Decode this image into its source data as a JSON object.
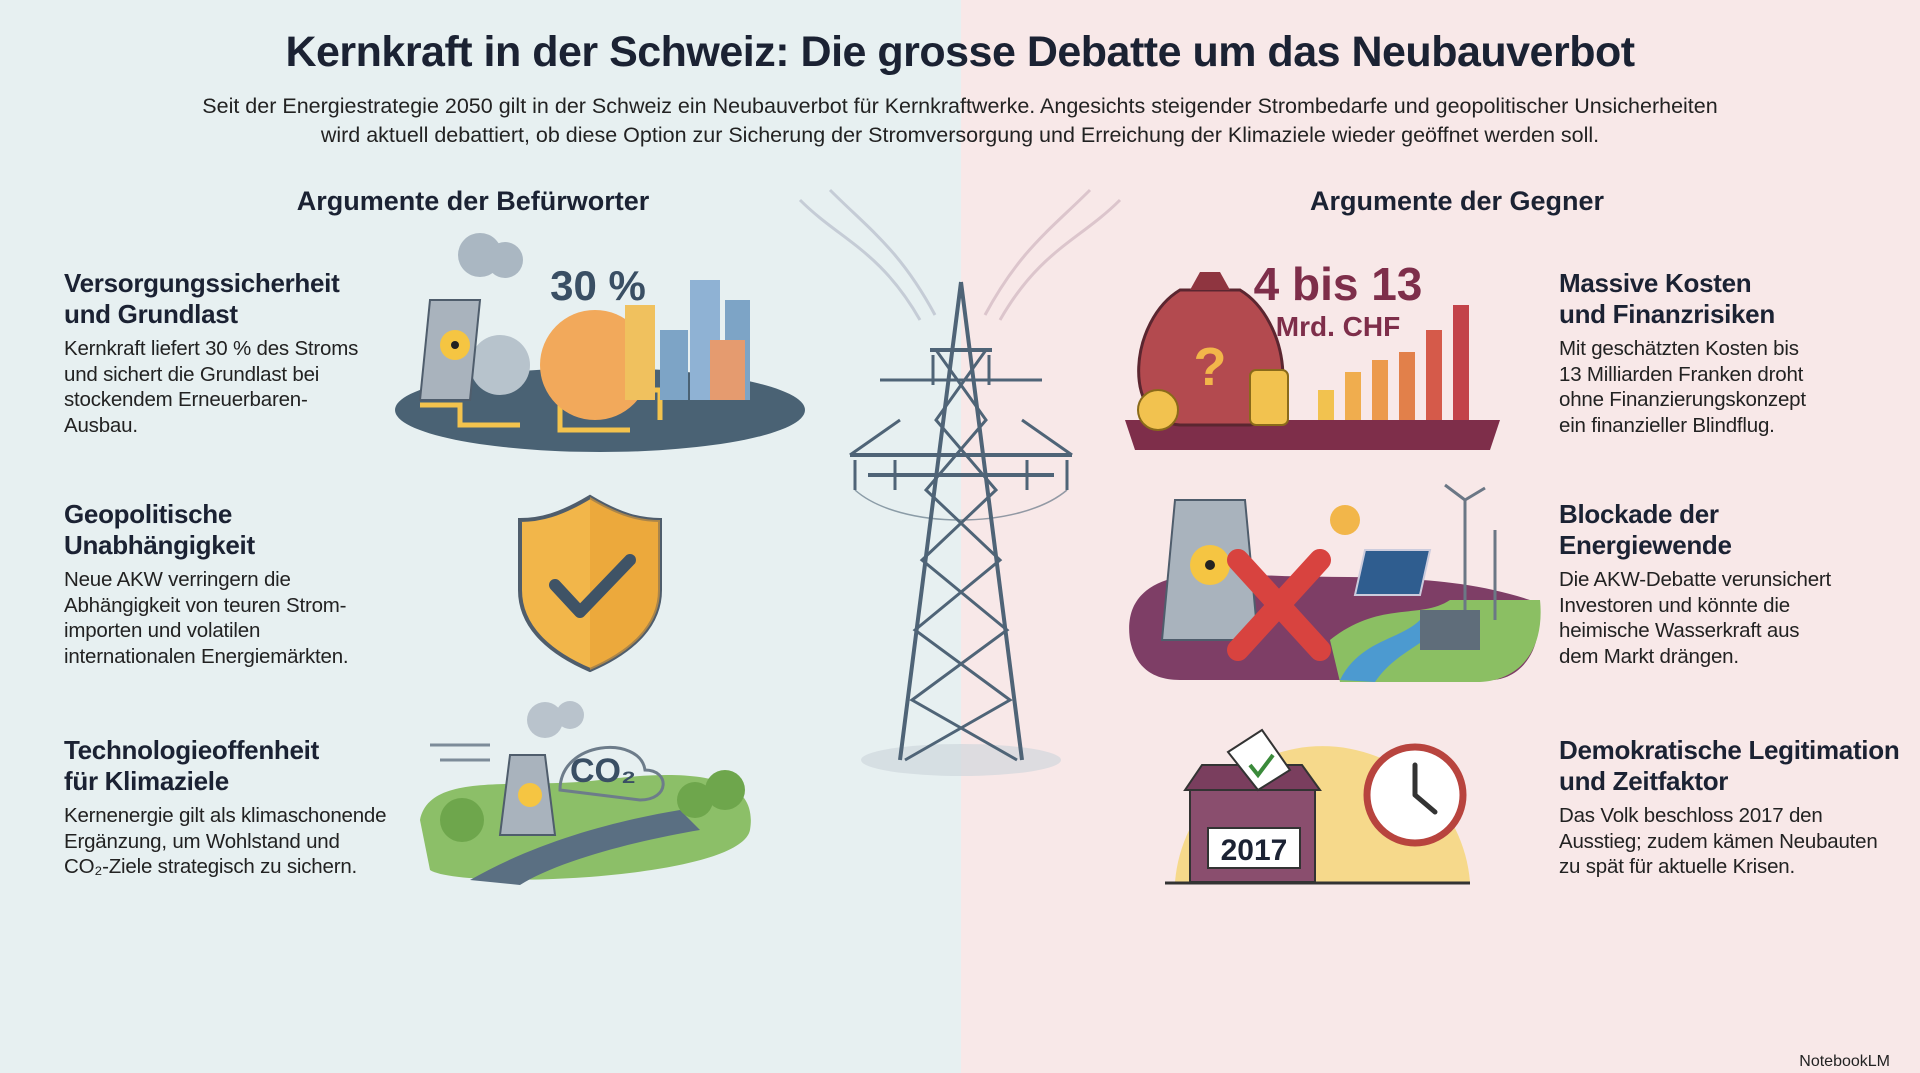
{
  "header": {
    "title": "Kernkraft in der Schweiz: Die grosse Debatte um das Neubauverbot",
    "subtitle": [
      "Seit der Energiestrategie 2050 gilt in der Schweiz ein Neubauverbot für Kernkraftwerke. Angesichts steigender Strombedarfe und geopolitischer Unsicherheiten",
      "wird aktuell debattiert, ob diese Option zur Sicherung der Stromversorgung und Erreichung der Klimaziele wieder geöffnet werden soll."
    ]
  },
  "columns": [
    {
      "heading": "Argumente der Befürworter",
      "items": [
        {
          "title": [
            "Versorgungssicherheit",
            "und Grundlast"
          ],
          "text": [
            "Kernkraft liefert 30 % des Stroms",
            "und sichert die Grundlast bei",
            "stockendem Erneuerbaren-",
            "Ausbau."
          ]
        },
        {
          "title": [
            "Geopolitische",
            "Unabhängigkeit"
          ],
          "text": [
            "Neue AKW verringern die",
            "Abhängigkeit von teuren Strom-",
            "importen und volatilen",
            "internationalen Energiemärkten."
          ]
        },
        {
          "title": [
            "Technologieoffenheit",
            "für Klimaziele"
          ],
          "text": [
            "Kernenergie gilt als klimaschonende",
            "Ergänzung, um Wohlstand und",
            "CO₂-Ziele strategisch zu sichern."
          ]
        }
      ]
    },
    {
      "heading": "Argumente der Gegner",
      "items": [
        {
          "title": [
            "Massive Kosten",
            "und Finanzrisiken"
          ],
          "text": [
            "Mit geschätzten Kosten bis",
            "13 Milliarden Franken droht",
            "ohne Finanzierungskonzept",
            "ein finanzieller Blindflug."
          ]
        },
        {
          "title": [
            "Blockade der",
            "Energiewende"
          ],
          "text": [
            "Die AKW-Debatte verunsichert",
            "Investoren und könnte die",
            "heimische Wasserkraft aus",
            "dem Markt drängen."
          ]
        },
        {
          "title": [
            "Demokratische Legitimation",
            "und Zeitfaktor"
          ],
          "text": [
            "Das Volk beschloss 2017 den",
            "Ausstieg; zudem kämen Neubauten",
            "zu spät für aktuelle Krisen."
          ]
        }
      ]
    }
  ],
  "illustrations": {
    "share": "30 %",
    "cost": "4 bis 13",
    "cost_unit": "Mrd. CHF",
    "co2": "CO₂",
    "year": "2017"
  },
  "footer": "NotebookLM"
}
